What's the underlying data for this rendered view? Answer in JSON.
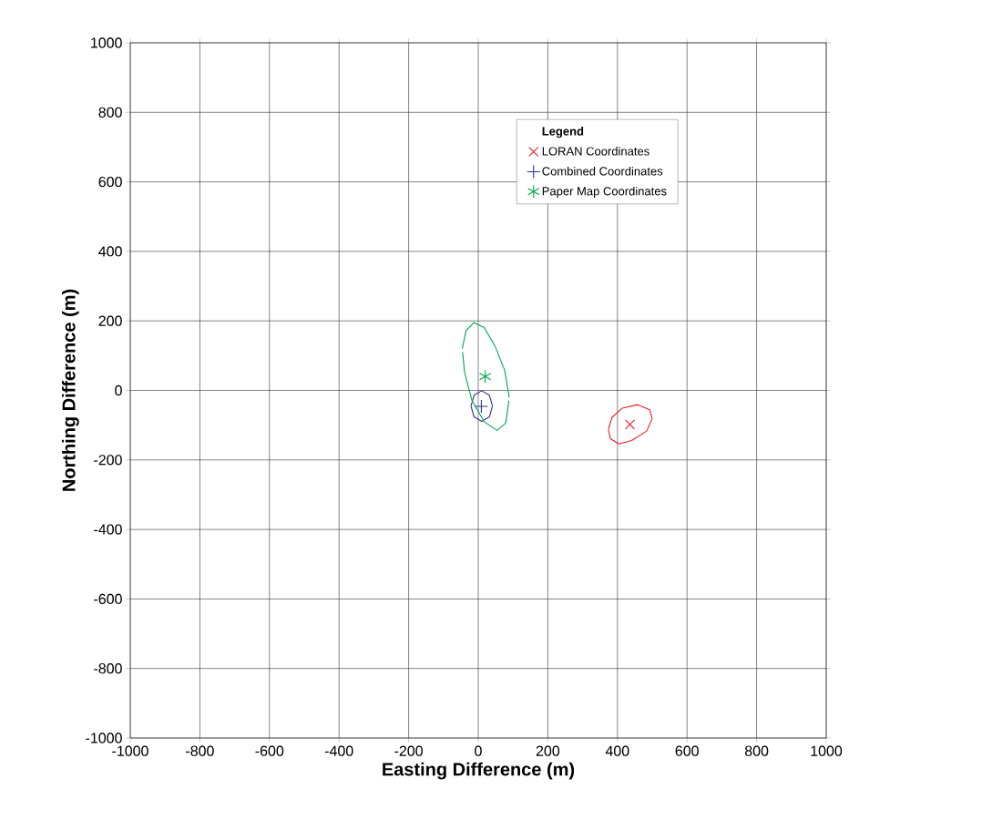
{
  "chart_data": {
    "type": "scatter",
    "xlabel": "Easting Difference (m)",
    "ylabel": "Northing Difference (m)",
    "legend_title": "Legend",
    "xlim": [
      -1000,
      1000
    ],
    "ylim": [
      -1000,
      1000
    ],
    "xticks": [
      -1000,
      -800,
      -600,
      -400,
      -200,
      0,
      200,
      400,
      600,
      800,
      1000
    ],
    "yticks": [
      -1000,
      -800,
      -600,
      -400,
      -200,
      0,
      200,
      400,
      600,
      800,
      1000
    ],
    "grid": true,
    "legend": "top right",
    "series": [
      {
        "name": "LORAN Coordinates",
        "color": "#ed1c24",
        "marker": "cross",
        "x": [
          436
        ],
        "values": [
          -98
        ]
      },
      {
        "name": "Combined Coordinates",
        "color": "#2e3192",
        "marker": "plus",
        "x": [
          9
        ],
        "values": [
          -46
        ]
      },
      {
        "name": "Paper Map Coordinates",
        "color": "#00a651",
        "x": [
          20
        ],
        "values": [
          40
        ]
      },
      {
        "type": "line",
        "color": "#ed1c24",
        "marker": "none",
        "x": [
          374,
          384,
          414,
          458,
          493,
          500
        ],
        "values": [
          -113,
          -78,
          -51,
          -41,
          -56,
          -81
        ]
      },
      {
        "type": "line",
        "color": "#ed1c24",
        "marker": "none",
        "x": [
          374,
          380,
          404,
          441,
          484,
          500
        ],
        "values": [
          -113,
          -139,
          -154,
          -144,
          -117,
          -81
        ]
      },
      {
        "type": "line",
        "color": "#2e3192",
        "marker": "none",
        "x": [
          -21,
          -12,
          10,
          32,
          41
        ],
        "values": [
          -45,
          -14,
          -1,
          -14,
          -45
        ]
      },
      {
        "type": "line",
        "color": "#2e3192",
        "marker": "none",
        "x": [
          -21,
          -12,
          10,
          32,
          41
        ],
        "values": [
          -45,
          -76,
          -89,
          -76,
          -45
        ]
      },
      {
        "type": "line",
        "color": "#00a651",
        "marker": "none",
        "x": [
          -46,
          -35,
          -13,
          17,
          48,
          76,
          89
        ],
        "values": [
          120,
          172,
          195,
          181,
          128,
          58,
          -20
        ]
      },
      {
        "type": "line",
        "color": "#00a651",
        "marker": "none",
        "x": [
          -45,
          -39,
          -18,
          17,
          54,
          79,
          88
        ],
        "values": [
          110,
          50,
          -29,
          -90,
          -115,
          -94,
          -30
        ]
      }
    ]
  }
}
